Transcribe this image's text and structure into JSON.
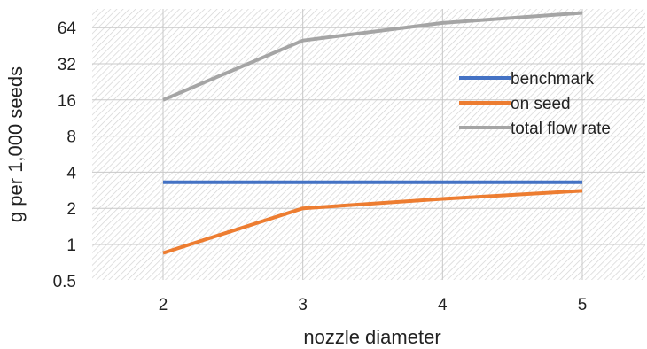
{
  "chart_data": {
    "type": "line",
    "title": "",
    "xlabel": "nozzle diameter",
    "ylabel": "g per 1,000 seeds",
    "y_scale": "log2",
    "ylim": [
      0.5,
      90
    ],
    "x": [
      2,
      3,
      4,
      5
    ],
    "x_tick_labels": [
      "2",
      "3",
      "4",
      "5"
    ],
    "y_ticks": [
      0.5,
      1,
      2,
      4,
      8,
      16,
      32,
      64
    ],
    "y_tick_labels": [
      "0.5",
      "1",
      "2",
      "4",
      "8",
      "16",
      "32",
      "64"
    ],
    "grid": true,
    "legend_position": "right",
    "series": [
      {
        "name": "benchmark",
        "color": "#4472c4",
        "values": [
          3.3,
          3.3,
          3.3,
          3.3
        ]
      },
      {
        "name": "on seed",
        "color": "#ed7d31",
        "values": [
          0.85,
          2.0,
          2.4,
          2.8
        ]
      },
      {
        "name": "total flow rate",
        "color": "#a5a5a5",
        "values": [
          16,
          50,
          70,
          85
        ]
      }
    ]
  }
}
